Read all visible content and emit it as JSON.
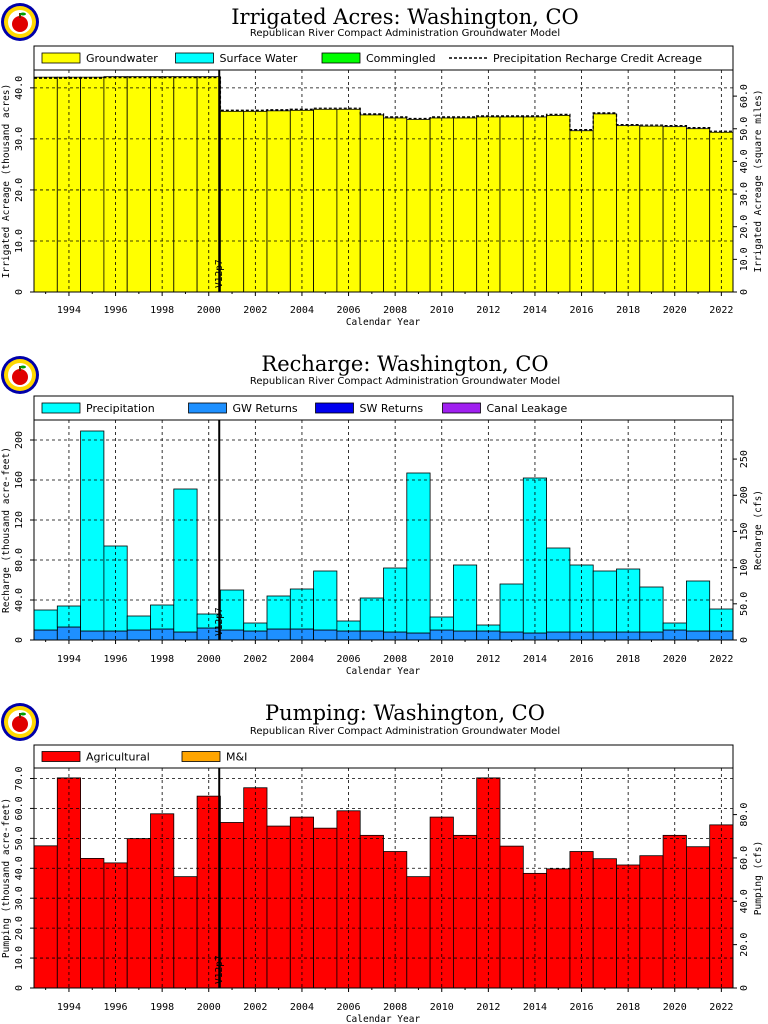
{
  "page": {
    "source_line": "Republican River Compact Administration Groundwater Model",
    "x_axis_label": "Calendar Year",
    "marker_label": "V12p7"
  },
  "chart_data": [
    {
      "id": "irrigated",
      "type": "area",
      "title": "Irrigated Acres: Washington, CO",
      "subtitle": "Republican River Compact Administration Groundwater Model",
      "xlabel": "Calendar Year",
      "ylabel": "Irrigated Acreage (thousand acres)",
      "y2label": "Irrigated Acreage (square miles)",
      "x": [
        1993,
        1994,
        1995,
        1996,
        1997,
        1998,
        1999,
        2000,
        2001,
        2002,
        2003,
        2004,
        2005,
        2006,
        2007,
        2008,
        2009,
        2010,
        2011,
        2012,
        2013,
        2014,
        2015,
        2016,
        2017,
        2018,
        2019,
        2020,
        2021,
        2022
      ],
      "xlim": [
        1992.5,
        2022.5
      ],
      "ylim": [
        0,
        43.5
      ],
      "yticks": [
        0,
        10.0,
        20.0,
        30.0,
        40.0
      ],
      "y2lim": [
        0,
        68
      ],
      "y2ticks": [
        0,
        10.0,
        20.0,
        30.0,
        40.0,
        50.0,
        60.0
      ],
      "xticks": [
        1994,
        1996,
        1998,
        2000,
        2002,
        2004,
        2006,
        2008,
        2010,
        2012,
        2014,
        2016,
        2018,
        2020,
        2022
      ],
      "legend": [
        {
          "label": "Groundwater",
          "color": "#ffff00"
        },
        {
          "label": "Surface Water",
          "color": "#00ffff"
        },
        {
          "label": "Commingled",
          "color": "#00ff00"
        },
        {
          "label": "Precipitation Recharge Credit Acreage",
          "color": "#000000",
          "dashed": true
        }
      ],
      "series": [
        {
          "name": "Groundwater",
          "color": "#ffff00",
          "values": [
            42.1,
            42.1,
            42.1,
            42.2,
            42.2,
            42.2,
            42.2,
            42.2,
            35.4,
            35.4,
            35.5,
            35.6,
            35.8,
            35.8,
            34.7,
            34.1,
            33.8,
            34.1,
            34.1,
            34.3,
            34.3,
            34.3,
            34.6,
            31.6,
            34.9,
            32.6,
            32.5,
            32.4,
            32.0,
            31.3
          ]
        },
        {
          "name": "Surface Water",
          "color": "#00ffff",
          "values": [
            0,
            0,
            0,
            0,
            0,
            0,
            0,
            0,
            0,
            0,
            0,
            0,
            0,
            0,
            0,
            0,
            0,
            0,
            0,
            0,
            0,
            0,
            0,
            0,
            0,
            0,
            0,
            0,
            0,
            0
          ]
        },
        {
          "name": "Commingled",
          "color": "#00ff00",
          "values": [
            0,
            0,
            0,
            0,
            0,
            0,
            0,
            0,
            0,
            0,
            0,
            0,
            0,
            0,
            0,
            0,
            0,
            0,
            0,
            0,
            0,
            0,
            0,
            0,
            0,
            0,
            0,
            0,
            0,
            0
          ]
        },
        {
          "name": "Precipitation Recharge Credit Acreage",
          "color": "#000000",
          "dashed": true,
          "values": [
            41.9,
            41.9,
            41.9,
            42.0,
            42.0,
            42.0,
            42.0,
            42.0,
            35.6,
            35.6,
            35.7,
            35.8,
            36.0,
            36.0,
            34.9,
            34.3,
            34.0,
            34.3,
            34.3,
            34.5,
            34.5,
            34.5,
            34.8,
            31.8,
            35.1,
            32.8,
            32.7,
            32.6,
            32.2,
            31.5
          ]
        }
      ],
      "marker_year": 2000.45,
      "grid": true,
      "legend_position": "top"
    },
    {
      "id": "recharge",
      "type": "area",
      "title": "Recharge: Washington, CO",
      "subtitle": "Republican River Compact Administration Groundwater Model",
      "xlabel": "Calendar Year",
      "ylabel": "Recharge (thousand acre-feet)",
      "y2label": "Recharge (cfs)",
      "x": [
        1993,
        1994,
        1995,
        1996,
        1997,
        1998,
        1999,
        2000,
        2001,
        2002,
        2003,
        2004,
        2005,
        2006,
        2007,
        2008,
        2009,
        2010,
        2011,
        2012,
        2013,
        2014,
        2015,
        2016,
        2017,
        2018,
        2019,
        2020,
        2021,
        2022
      ],
      "xlim": [
        1992.5,
        2022.5
      ],
      "ylim": [
        0,
        220
      ],
      "yticks": [
        0,
        40.0,
        80.0,
        120,
        160,
        200
      ],
      "y2lim": [
        0,
        304
      ],
      "y2ticks": [
        0,
        50.0,
        100,
        150,
        200,
        250
      ],
      "xticks": [
        1994,
        1996,
        1998,
        2000,
        2002,
        2004,
        2006,
        2008,
        2010,
        2012,
        2014,
        2016,
        2018,
        2020,
        2022
      ],
      "legend": [
        {
          "label": "Precipitation",
          "color": "#00ffff"
        },
        {
          "label": "GW Returns",
          "color": "#1e90ff"
        },
        {
          "label": "SW Returns",
          "color": "#0000ee"
        },
        {
          "label": "Canal Leakage",
          "color": "#a020f0"
        }
      ],
      "series": [
        {
          "name": "GW Returns",
          "color": "#1e90ff",
          "values": [
            10,
            13,
            9,
            9,
            10,
            11,
            8,
            12,
            10,
            9,
            11,
            11,
            10,
            9,
            9,
            8,
            7,
            10,
            9,
            9,
            8,
            7,
            8,
            8,
            8,
            8,
            8,
            10,
            9,
            9
          ]
        },
        {
          "name": "SW Returns",
          "color": "#0000ee",
          "values": [
            0,
            0,
            0,
            0,
            0,
            0,
            0,
            0,
            0,
            0,
            0,
            0,
            0,
            0,
            0,
            0,
            0,
            0,
            0,
            0,
            0,
            0,
            0,
            0,
            0,
            0,
            0,
            0,
            0,
            0
          ]
        },
        {
          "name": "Canal Leakage",
          "color": "#a020f0",
          "values": [
            0,
            0,
            0,
            0,
            0,
            0,
            0,
            0,
            0,
            0,
            0,
            0,
            0,
            0,
            0,
            0,
            0,
            0,
            0,
            0,
            0,
            0,
            0,
            0,
            0,
            0,
            0,
            0,
            0,
            0
          ]
        },
        {
          "name": "Precipitation",
          "color": "#00ffff",
          "values": [
            20,
            21,
            200,
            85,
            14,
            24,
            143,
            14,
            40,
            8,
            33,
            40,
            59,
            10,
            33,
            64,
            160,
            13,
            66,
            6,
            48,
            155,
            84,
            67,
            61,
            63,
            45,
            7,
            50,
            22
          ]
        }
      ],
      "marker_year": 2000.45,
      "grid": true,
      "legend_position": "top"
    },
    {
      "id": "pumping",
      "type": "area",
      "title": "Pumping: Washington, CO",
      "subtitle": "Republican River Compact Administration Groundwater Model",
      "xlabel": "Calendar Year",
      "ylabel": "Pumping (thousand acre-feet)",
      "y2label": "Pumping (cfs)",
      "x": [
        1993,
        1994,
        1995,
        1996,
        1997,
        1998,
        1999,
        2000,
        2001,
        2002,
        2003,
        2004,
        2005,
        2006,
        2007,
        2008,
        2009,
        2010,
        2011,
        2012,
        2013,
        2014,
        2015,
        2016,
        2017,
        2018,
        2019,
        2020,
        2021,
        2022
      ],
      "xlim": [
        1992.5,
        2022.5
      ],
      "ylim": [
        0,
        73.5
      ],
      "yticks": [
        0,
        10.0,
        20.0,
        30.0,
        40.0,
        50.0,
        60.0,
        70.0
      ],
      "y2lim": [
        0,
        101.5
      ],
      "y2ticks": [
        0,
        20.0,
        40.0,
        60.0,
        80.0
      ],
      "xticks": [
        1994,
        1996,
        1998,
        2000,
        2002,
        2004,
        2006,
        2008,
        2010,
        2012,
        2014,
        2016,
        2018,
        2020,
        2022
      ],
      "legend": [
        {
          "label": "Agricultural",
          "color": "#ff0000"
        },
        {
          "label": "M&I",
          "color": "#ffa500"
        }
      ],
      "series": [
        {
          "name": "Agricultural",
          "color": "#ff0000",
          "values": [
            47.5,
            70.2,
            43.3,
            41.8,
            49.9,
            58.2,
            37.2,
            64.1,
            55.3,
            66.9,
            54.1,
            57.1,
            53.4,
            59.2,
            51.0,
            45.6,
            37.2,
            57.1,
            51.0,
            70.2,
            47.4,
            38.3,
            39.8,
            45.6,
            43.2,
            41.1,
            44.2,
            51.0,
            47.2,
            54.5
          ]
        },
        {
          "name": "M&I",
          "color": "#ffa500",
          "values": [
            0,
            0,
            0,
            0,
            0,
            0,
            0,
            0,
            0,
            0,
            0,
            0,
            0,
            0,
            0,
            0,
            0,
            0,
            0,
            0,
            0,
            0,
            0,
            0,
            0,
            0,
            0,
            0,
            0,
            0
          ]
        }
      ],
      "marker_year": 2000.45,
      "grid": true,
      "legend_position": "top"
    }
  ]
}
